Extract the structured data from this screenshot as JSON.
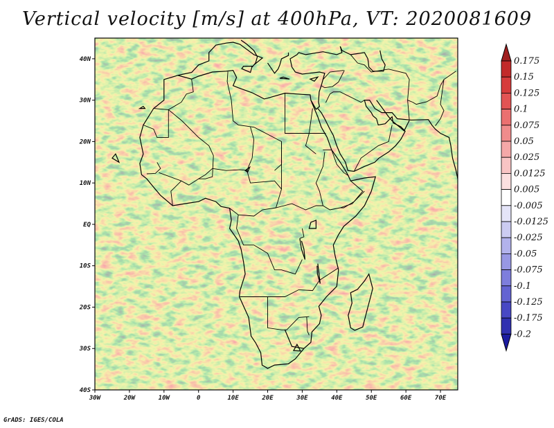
{
  "title": "Vertical velocity [m/s] at 400hPa, VT: 2020081609",
  "credit": "GrADS: IGES/COLA",
  "map": {
    "lon_range": [
      -30,
      75
    ],
    "lat_range": [
      -40,
      45
    ],
    "x_ticks": [
      "30W",
      "20W",
      "10W",
      "0",
      "10E",
      "20E",
      "30E",
      "40E",
      "50E",
      "60E",
      "70E"
    ],
    "y_ticks": [
      "40N",
      "30N",
      "20N",
      "10N",
      "EQ",
      "10S",
      "20S",
      "30S",
      "40S"
    ]
  },
  "colorbar": {
    "labels": [
      "0.175",
      "0.15",
      "0.125",
      "0.1",
      "0.075",
      "0.05",
      "0.025",
      "0.0125",
      "0.005",
      "-0.005",
      "-0.0125",
      "-0.025",
      "-0.05",
      "-0.075",
      "-0.1",
      "-0.125",
      "-0.175",
      "-0.2"
    ],
    "colors": [
      "#a01f1f",
      "#c22a2a",
      "#d63c3c",
      "#e25454",
      "#eb7070",
      "#f08c8c",
      "#f4a8a8",
      "#f8c4c4",
      "#fbe0e0",
      "#ffffff",
      "#e4e4f8",
      "#ccccf2",
      "#b2b2ec",
      "#9898e4",
      "#7e7edc",
      "#6464d2",
      "#4848c4",
      "#3030b0",
      "#1c1ca0"
    ]
  }
}
